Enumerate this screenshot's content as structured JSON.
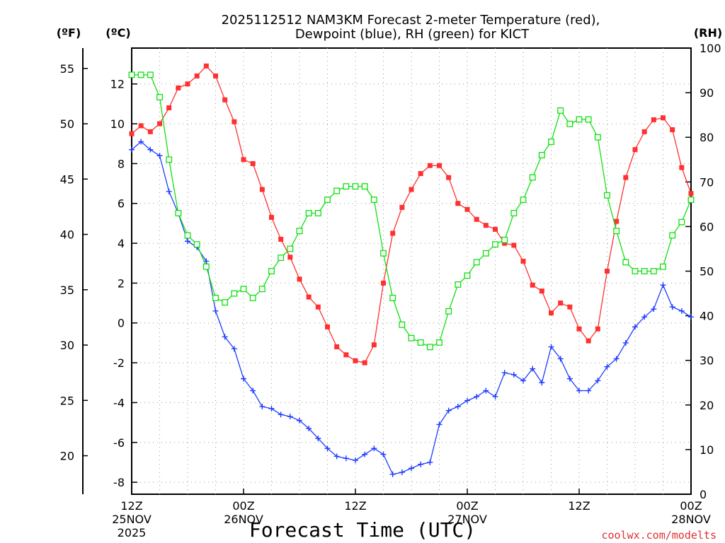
{
  "chart_data": {
    "type": "line",
    "title_line1": "2025112512 NAM3KM Forecast 2-meter Temperature (red),",
    "title_line2": "Dewpoint (blue), RH (green) for KICT",
    "xlabel": "Forecast Time (UTC)",
    "unit_f": "(ºF)",
    "unit_c": "(ºC)",
    "unit_rh": "(RH)",
    "watermark": "coolwx.com/modelts",
    "xlim": [
      0,
      60
    ],
    "ylim_c": [
      -8.6,
      13.8
    ],
    "ylim_rh": [
      0,
      100
    ],
    "c_ticks": [
      -8,
      -6,
      -4,
      -2,
      0,
      2,
      4,
      6,
      8,
      10,
      12
    ],
    "f_ticks": [
      20,
      25,
      30,
      35,
      40,
      45,
      50,
      55
    ],
    "rh_ticks": [
      0,
      10,
      20,
      30,
      40,
      50,
      60,
      70,
      80,
      90,
      100
    ],
    "x_ticks": [
      {
        "hour": 0,
        "lines": [
          "12Z",
          "25NOV",
          "2025"
        ]
      },
      {
        "hour": 12,
        "lines": [
          "00Z",
          "26NOV"
        ]
      },
      {
        "hour": 24,
        "lines": [
          "12Z",
          ""
        ]
      },
      {
        "hour": 36,
        "lines": [
          "00Z",
          "27NOV"
        ]
      },
      {
        "hour": 48,
        "lines": [
          "12Z",
          ""
        ]
      },
      {
        "hour": 60,
        "lines": [
          "00Z",
          "28NOV"
        ]
      }
    ],
    "series": [
      {
        "name": "Temperature",
        "unit": "C",
        "color": "#ff3030",
        "marker": "filled-square",
        "values": [
          9.5,
          9.9,
          9.6,
          10.0,
          10.8,
          11.8,
          12.0,
          12.4,
          12.9,
          12.4,
          11.2,
          10.1,
          8.2,
          8.0,
          6.7,
          5.3,
          4.2,
          3.3,
          2.2,
          1.3,
          0.8,
          -0.2,
          -1.2,
          -1.6,
          -1.9,
          -2.0,
          -1.1,
          2.0,
          4.5,
          5.8,
          6.7,
          7.5,
          7.9,
          7.9,
          7.3,
          6.0,
          5.7,
          5.2,
          4.9,
          4.7,
          4.0,
          3.9,
          3.1,
          1.9,
          1.6,
          0.5,
          1.0,
          0.8,
          -0.3,
          -0.9,
          -0.3,
          2.6,
          5.1,
          7.3,
          8.7,
          9.6,
          10.2,
          10.3,
          9.7,
          7.8,
          6.5
        ]
      },
      {
        "name": "Dewpoint",
        "unit": "C",
        "color": "#1e3cff",
        "marker": "plus",
        "values": [
          8.7,
          9.1,
          8.7,
          8.4,
          6.6,
          5.5,
          4.1,
          3.8,
          3.1,
          0.6,
          -0.7,
          -1.3,
          -2.8,
          -3.4,
          -4.2,
          -4.3,
          -4.6,
          -4.7,
          -4.9,
          -5.3,
          -5.8,
          -6.3,
          -6.7,
          -6.8,
          -6.9,
          -6.6,
          -6.3,
          -6.6,
          -7.6,
          -7.5,
          -7.3,
          -7.1,
          -7.0,
          -5.1,
          -4.4,
          -4.2,
          -3.9,
          -3.7,
          -3.4,
          -3.7,
          -2.5,
          -2.6,
          -2.9,
          -2.3,
          -3.0,
          -1.2,
          -1.8,
          -2.8,
          -3.4,
          -3.4,
          -2.9,
          -2.2,
          -1.8,
          -1.0,
          -0.2,
          0.3,
          0.7,
          1.9,
          0.8,
          0.6,
          0.3
        ]
      },
      {
        "name": "RH",
        "unit": "%",
        "color": "#10e010",
        "marker": "open-square",
        "values": [
          94,
          94,
          94,
          89,
          75,
          63,
          58,
          56,
          51,
          44,
          43,
          45,
          46,
          44,
          46,
          50,
          53,
          55,
          59,
          63,
          63,
          66,
          68,
          69,
          69,
          69,
          66,
          54,
          44,
          38,
          35,
          34,
          33,
          34,
          41,
          47,
          49,
          52,
          54,
          56,
          57,
          63,
          66,
          71,
          76,
          79,
          86,
          83,
          84,
          84,
          80,
          67,
          59,
          52,
          50,
          50,
          50,
          51,
          58,
          61,
          66
        ]
      }
    ]
  }
}
